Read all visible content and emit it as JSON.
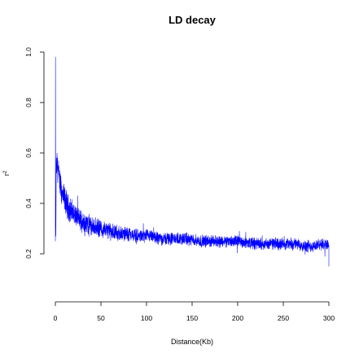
{
  "chart_data": {
    "type": "line",
    "title": "LD decay",
    "xlabel": "Distance(Kb)",
    "ylabel": "r",
    "ylabel_superscript": "2",
    "xlim": [
      0,
      300
    ],
    "ylim": [
      0.2,
      1.0
    ],
    "x_ticks": [
      0,
      50,
      100,
      150,
      200,
      250,
      300
    ],
    "y_ticks": [
      0.2,
      0.4,
      0.6,
      0.8,
      1.0
    ],
    "y_tick_labels": [
      "0.2",
      "0.4",
      "0.6",
      "0.8",
      "1.0"
    ],
    "grid": false,
    "legend": "none",
    "colors": {
      "series": "#0000ff",
      "axis": "#000000"
    },
    "series": [
      {
        "x": [
          0,
          0.5,
          1,
          1.5,
          2,
          3,
          4,
          5,
          6,
          7,
          8,
          10,
          12,
          15,
          20,
          25,
          30,
          40,
          50,
          60,
          70,
          80,
          90,
          100,
          120,
          140,
          160,
          180,
          200,
          220,
          240,
          260,
          280,
          300
        ],
        "values": [
          0.25,
          0.98,
          0.5,
          0.58,
          0.55,
          0.53,
          0.5,
          0.48,
          0.46,
          0.44,
          0.43,
          0.42,
          0.4,
          0.38,
          0.36,
          0.34,
          0.33,
          0.31,
          0.3,
          0.29,
          0.28,
          0.28,
          0.27,
          0.27,
          0.26,
          0.26,
          0.25,
          0.25,
          0.25,
          0.24,
          0.24,
          0.24,
          0.23,
          0.24
        ]
      }
    ]
  }
}
